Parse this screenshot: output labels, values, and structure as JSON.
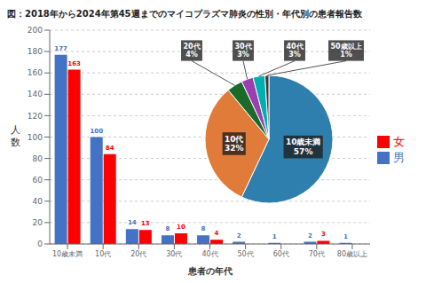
{
  "chart_data": [
    {
      "type": "bar",
      "title": "図：2018年から2024年第45週までのマイコプラズマ肺炎の性別・年代別の患者報告数",
      "categories": [
        "10歳未満",
        "10代",
        "20代",
        "30代",
        "40代",
        "50代",
        "60代",
        "70代",
        "80歳以上"
      ],
      "series": [
        {
          "name": "男",
          "color": "#4472c4",
          "values": [
            177,
            100,
            14,
            8,
            8,
            2,
            1,
            2,
            1
          ]
        },
        {
          "name": "女",
          "color": "#ff0000",
          "values": [
            163,
            84,
            13,
            10,
            4,
            0,
            0,
            3,
            0
          ]
        }
      ],
      "xlabel": "患者の年代",
      "ylabel": "人\n数",
      "ylim": [
        0,
        200
      ],
      "yticks": [
        0,
        20,
        40,
        60,
        80,
        100,
        120,
        140,
        160,
        180,
        200
      ],
      "grid": true,
      "legend": "right",
      "data_labels": true
    },
    {
      "type": "pie",
      "categories": [
        "10歳未満",
        "10代",
        "20代",
        "30代",
        "40代",
        "50歳以上"
      ],
      "values": [
        57,
        32,
        4,
        3,
        3,
        1
      ],
      "value_labels": [
        "57%",
        "32%",
        "4%",
        "3%",
        "3%",
        "1%"
      ],
      "colors": [
        "#2e7fad",
        "#e07b39",
        "#1a6b2a",
        "#9b3eb0",
        "#00b0b0",
        "#3a3a3a"
      ],
      "data_labels": true
    }
  ]
}
